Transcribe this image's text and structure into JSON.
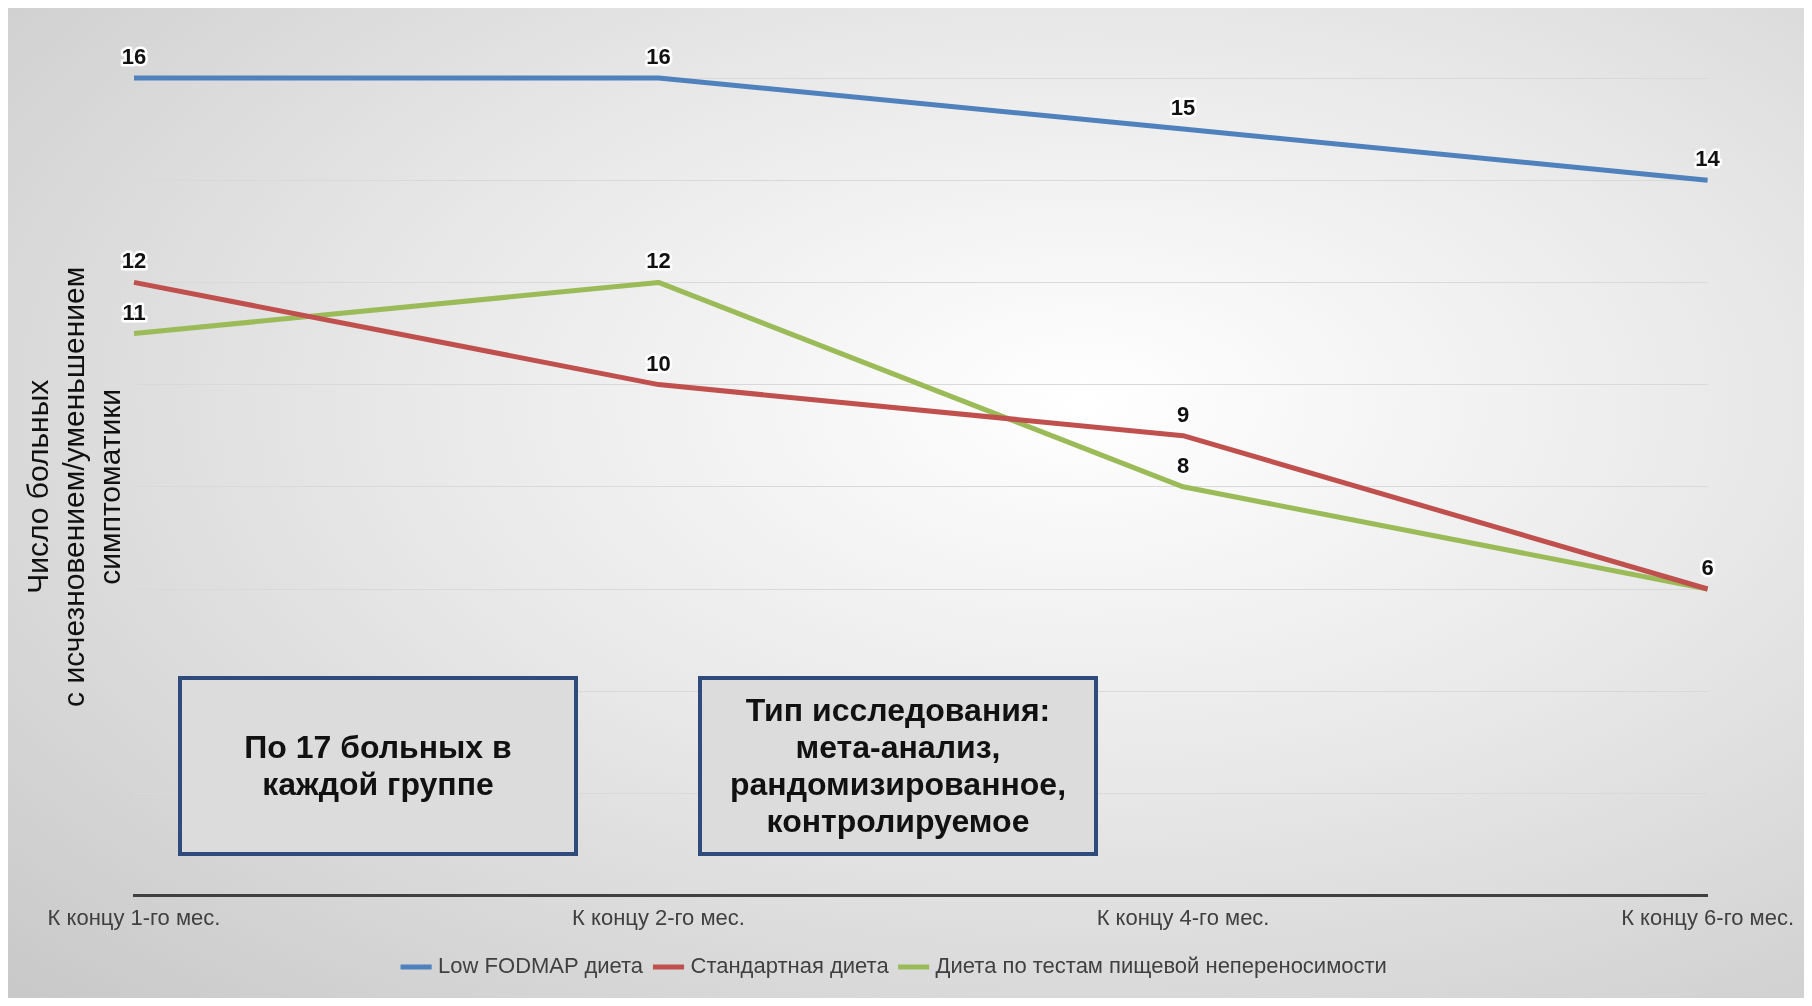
{
  "chart_data": {
    "type": "line",
    "ylabel": "Число больных\nс исчезновением/уменьшением\nсимптоматики",
    "categories": [
      "К концу 1-го мес.",
      "К концу 2-го мес.",
      "К концу 4-го мес.",
      "К концу 6-го мес."
    ],
    "series": [
      {
        "name": "Low FODMAP диета",
        "color": "#4f81bd",
        "values": [
          16,
          16,
          15,
          14
        ],
        "value_labels": [
          "16",
          "16",
          "15",
          "14"
        ]
      },
      {
        "name": "Стандартная диета",
        "color": "#c0504d",
        "values": [
          12,
          10,
          9,
          6
        ],
        "value_labels": [
          "12",
          "10",
          "9",
          "6"
        ]
      },
      {
        "name": "Диета по тестам пищевой непереносимости",
        "color": "#9bbb59",
        "values": [
          11,
          12,
          8,
          6
        ],
        "value_labels": [
          "11",
          "12",
          "8",
          null
        ]
      }
    ],
    "ylim": [
      0,
      16
    ],
    "yticks": [
      {
        "value": 0,
        "label": null
      },
      {
        "value": 2,
        "label": null
      },
      {
        "value": 4,
        "label": null
      },
      {
        "value": 6,
        "label": null
      },
      {
        "value": 8,
        "label": null
      },
      {
        "value": 10,
        "label": null
      },
      {
        "value": 12,
        "label": null
      },
      {
        "value": 14,
        "label": null
      },
      {
        "value": 16,
        "label": null
      }
    ],
    "tick_labels": "x",
    "grid": "y",
    "legend": "bottom",
    "marker": "none",
    "line_style": "solid",
    "annotations": [
      "По 17 больных в каждой группе",
      "Тип исследования: мета-анализ, рандомизированное, контролируемое"
    ]
  }
}
